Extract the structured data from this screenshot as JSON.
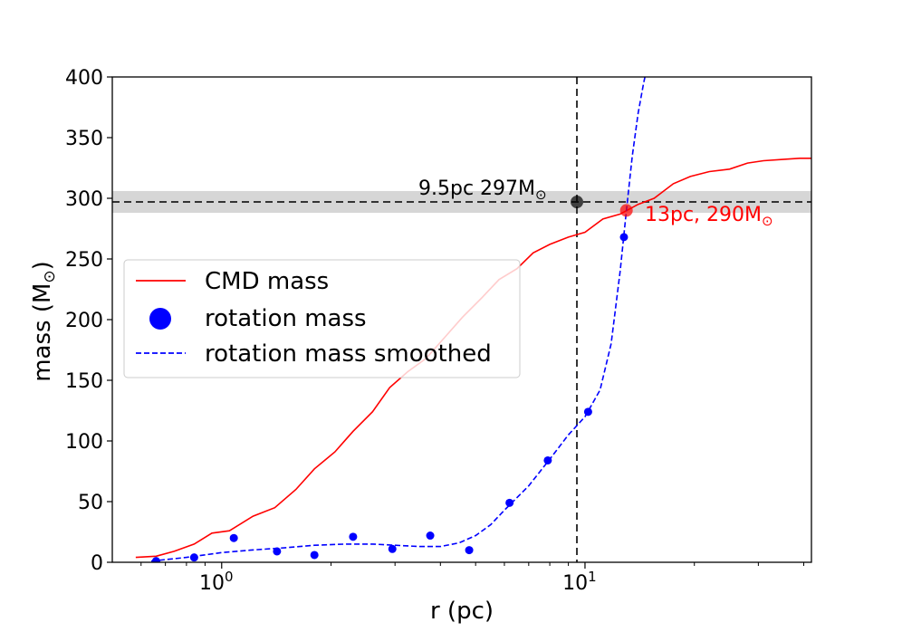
{
  "chart_data": {
    "type": "line",
    "xlabel": "r (pc)",
    "ylabel_text": "mass (M",
    "ylabel_sub": "⊙",
    "ylabel_close": ")",
    "xscale": "log",
    "xlim": [
      0.5,
      42
    ],
    "ylim": [
      0,
      400
    ],
    "yticks": [
      0,
      50,
      100,
      150,
      200,
      250,
      300,
      350,
      400
    ],
    "xticks": [
      {
        "value": 1,
        "base": "10",
        "exp": "0"
      },
      {
        "value": 10,
        "base": "10",
        "exp": "1"
      }
    ],
    "series": [
      {
        "name": "CMD mass",
        "color": "#ff0000",
        "style": "solid",
        "x": [
          0.58,
          0.66,
          0.74,
          0.84,
          0.94,
          1.05,
          1.22,
          1.4,
          1.6,
          1.8,
          2.05,
          2.3,
          2.6,
          2.9,
          3.25,
          3.65,
          4.1,
          4.6,
          5.2,
          5.8,
          6.5,
          7.2,
          8.0,
          9.0,
          10.0,
          11.2,
          12.5,
          14.0,
          15.5,
          17.5,
          19.5,
          22.0,
          25.0,
          28.0,
          31.0,
          35.0,
          39.0,
          42.0
        ],
        "y": [
          4,
          5,
          9,
          15,
          24,
          26,
          38,
          45,
          60,
          77,
          91,
          108,
          124,
          144,
          157,
          168,
          185,
          202,
          218,
          233,
          242,
          255,
          262,
          268,
          272,
          283,
          287,
          295,
          300,
          312,
          318,
          322,
          324,
          329,
          331,
          332,
          333,
          333
        ]
      },
      {
        "name": "rotation mass",
        "color": "#0000ff",
        "style": "points",
        "x": [
          0.66,
          0.84,
          1.08,
          1.42,
          1.8,
          2.3,
          2.95,
          3.75,
          4.8,
          6.2,
          7.9,
          10.2,
          12.8
        ],
        "y": [
          1,
          4,
          20,
          9,
          6,
          21,
          11,
          22,
          10,
          49,
          84,
          124,
          268
        ]
      },
      {
        "name": "rotation mass smoothed",
        "color": "#0000ff",
        "style": "dashed",
        "x": [
          0.64,
          0.8,
          1.0,
          1.2,
          1.5,
          1.8,
          2.2,
          2.6,
          3.0,
          3.5,
          4.0,
          4.5,
          5.0,
          5.5,
          6.0,
          7.0,
          8.0,
          9.0,
          10.0,
          11.0,
          11.8,
          12.5,
          13.0,
          13.5,
          14.0,
          14.5,
          15.0
        ],
        "y": [
          1,
          4,
          8,
          10,
          12,
          14,
          15,
          15,
          14,
          13,
          13,
          16,
          22,
          31,
          43,
          63,
          85,
          105,
          120,
          142,
          180,
          240,
          290,
          335,
          370,
          395,
          415
        ]
      }
    ],
    "hline": {
      "y": 297,
      "band": [
        288,
        306
      ]
    },
    "vline": {
      "x": 9.5
    },
    "markers": [
      {
        "x": 9.5,
        "y": 297,
        "color": "#000000"
      },
      {
        "x": 13,
        "y": 290,
        "color": "#ff0000"
      }
    ],
    "annotations": {
      "black": {
        "text": "9.5pc 297M",
        "sub": "⊙",
        "color": "#000000"
      },
      "red": {
        "text": "13pc, 290M",
        "sub": "⊙",
        "color": "#ff0000"
      }
    },
    "legend": {
      "position": "center-left",
      "items": [
        "CMD mass",
        "rotation mass",
        "rotation mass smoothed"
      ]
    }
  }
}
